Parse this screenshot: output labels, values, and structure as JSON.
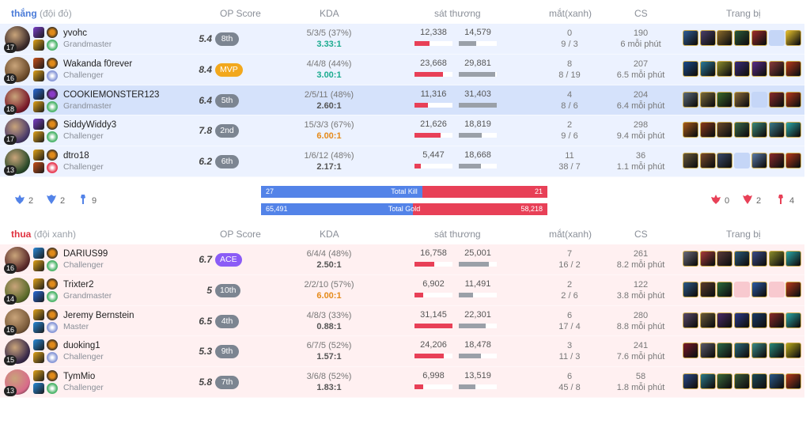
{
  "headers": {
    "op": "OP Score",
    "kda": "KDA",
    "dmg": "sát thương",
    "ward": "mắt(xanh)",
    "cs": "CS",
    "items": "Trang bị"
  },
  "teams": [
    {
      "result": "thắng",
      "side": "(đội đỏ)",
      "players": [
        {
          "name": "yvohc",
          "tier": "Grandmaster",
          "level": "17",
          "score": "5.4",
          "badge": "8th",
          "badge_type": "rank",
          "kda1": "5/3/5 (37%)",
          "kda2": "3.33:1",
          "kda_tone": "good",
          "dealt": "12,338",
          "taken": "14,579",
          "dealt_pct": 0.39,
          "taken_pct": 0.46,
          "wards": "0",
          "wards2": "9 / 3",
          "cs": "190",
          "cs_rate": "6 mỗi phút",
          "champ_color": "#3a2a2a",
          "spells": [
            "#7a3fc8",
            "#e0a21a"
          ],
          "runes": [
            "#e08a1a",
            "#4fb56c"
          ],
          "items": [
            "#2f5f9a",
            "#4a3f6a",
            "#8a6a2a",
            "#2a5a3a",
            "#a02a2a",
            "empty",
            "#e8c22a"
          ]
        },
        {
          "name": "Wakanda f0rever",
          "tier": "Challenger",
          "level": "16",
          "score": "8.4",
          "badge": "MVP",
          "badge_type": "mvp",
          "kda1": "4/4/8 (44%)",
          "kda2": "3.00:1",
          "kda_tone": "good",
          "dealt": "23,668",
          "taken": "29,881",
          "dealt_pct": 0.75,
          "taken_pct": 0.95,
          "wards": "8",
          "wards2": "8 / 19",
          "cs": "207",
          "cs_rate": "6.5 mỗi phút",
          "champ_color": "#6a4a2a",
          "spells": [
            "#c8501a",
            "#e0a21a"
          ],
          "runes": [
            "#e08a1a",
            "#8a9ad8"
          ],
          "items": [
            "#1a4a8a",
            "#2a7a9a",
            "#8a8a2a",
            "#3a2a7a",
            "#5a2a8a",
            "#8a3a3a",
            "#b8381a"
          ]
        },
        {
          "name": "COOKIEMONSTER123",
          "tier": "Grandmaster",
          "level": "18",
          "score": "6.4",
          "badge": "5th",
          "badge_type": "rank",
          "kda1": "2/5/11 (48%)",
          "kda2": "2.60:1",
          "kda_tone": "",
          "dealt": "11,316",
          "taken": "31,403",
          "dealt_pct": 0.36,
          "taken_pct": 1.0,
          "wards": "4",
          "wards2": "8 / 6",
          "cs": "204",
          "cs_rate": "6.4 mỗi phút",
          "champ_color": "#7a1a2a",
          "spells": [
            "#2a6ad8",
            "#e0a21a"
          ],
          "runes": [
            "#8a3ac8",
            "#4fb56c"
          ],
          "items": [
            "#5a6a7a",
            "#7a6a3a",
            "#3a6a2a",
            "#8a6a3a",
            "empty",
            "#8a2a2a",
            "#b8381a"
          ]
        },
        {
          "name": "SiddyWiddy3",
          "tier": "Challenger",
          "level": "17",
          "score": "7.8",
          "badge": "2nd",
          "badge_type": "rank",
          "kda1": "15/3/3 (67%)",
          "kda2": "6.00:1",
          "kda_tone": "great",
          "dealt": "21,626",
          "taken": "18,819",
          "dealt_pct": 0.69,
          "taken_pct": 0.6,
          "wards": "2",
          "wards2": "9 / 6",
          "cs": "298",
          "cs_rate": "9.4 mỗi phút",
          "champ_color": "#4a3a6a",
          "spells": [
            "#7a3fc8",
            "#e0a21a"
          ],
          "runes": [
            "#e08a1a",
            "#4fb56c"
          ],
          "items": [
            "#a85a1a",
            "#8a3a1a",
            "#6a4a2a",
            "#3a6a4a",
            "#3a8a7a",
            "#3a7a8a",
            "#2aa8a8"
          ]
        },
        {
          "name": "dtro18",
          "tier": "Challenger",
          "level": "13",
          "score": "6.2",
          "badge": "6th",
          "badge_type": "rank",
          "kda1": "1/6/12 (48%)",
          "kda2": "2.17:1",
          "kda_tone": "",
          "dealt": "5,447",
          "taken": "18,668",
          "dealt_pct": 0.17,
          "taken_pct": 0.59,
          "wards": "11",
          "wards2": "38 / 7",
          "cs": "36",
          "cs_rate": "1.1 mỗi phút",
          "champ_color": "#2a4a2a",
          "spells": [
            "#e0a21a",
            "#c8501a"
          ],
          "runes": [
            "#e08a1a",
            "#e84057"
          ],
          "items": [
            "#6a5a3a",
            "#7a4a2a",
            "#3a4a6a",
            "empty",
            "#5a7aa8",
            "#8a2a2a",
            "#b8381a"
          ]
        }
      ]
    },
    {
      "result": "thua",
      "side": "(đội xanh)",
      "players": [
        {
          "name": "DARIUS99",
          "tier": "Challenger",
          "level": "16",
          "score": "6.7",
          "badge": "ACE",
          "badge_type": "ace",
          "kda1": "6/4/4 (48%)",
          "kda2": "2.50:1",
          "kda_tone": "",
          "dealt": "16,758",
          "taken": "25,001",
          "dealt_pct": 0.53,
          "taken_pct": 0.8,
          "wards": "7",
          "wards2": "16 / 2",
          "cs": "261",
          "cs_rate": "8.2 mỗi phút",
          "champ_color": "#5a2a2a",
          "spells": [
            "#2a8ad8",
            "#e0a21a"
          ],
          "runes": [
            "#e08a1a",
            "#4fb56c"
          ],
          "items": [
            "#6a6a7a",
            "#a83a3a",
            "#5a3a3a",
            "#2a5a7a",
            "#3a4a8a",
            "#8a8a2a",
            "#2aa8a8"
          ]
        },
        {
          "name": "Trixter2",
          "tier": "Grandmaster",
          "level": "14",
          "score": "5",
          "badge": "10th",
          "badge_type": "rank",
          "kda1": "2/2/10 (57%)",
          "kda2": "6.00:1",
          "kda_tone": "great",
          "dealt": "6,902",
          "taken": "11,491",
          "dealt_pct": 0.22,
          "taken_pct": 0.37,
          "wards": "2",
          "wards2": "2 / 6",
          "cs": "122",
          "cs_rate": "3.8 mỗi phút",
          "champ_color": "#5a6a2a",
          "spells": [
            "#e0a21a",
            "#2a6ad8"
          ],
          "runes": [
            "#e08a1a",
            "#4fb56c"
          ],
          "items": [
            "#2a5a8a",
            "#5a3a2a",
            "#2a6a3a",
            "empty",
            "#2a5aa8",
            "empty",
            "#b8381a"
          ]
        },
        {
          "name": "Jeremy Bernstein",
          "tier": "Master",
          "level": "16",
          "score": "6.5",
          "badge": "4th",
          "badge_type": "rank",
          "kda1": "4/8/3 (33%)",
          "kda2": "0.88:1",
          "kda_tone": "",
          "dealt": "31,145",
          "taken": "22,301",
          "dealt_pct": 0.99,
          "taken_pct": 0.71,
          "wards": "6",
          "wards2": "17 / 4",
          "cs": "280",
          "cs_rate": "8.8 mỗi phút",
          "champ_color": "#7a5a3a",
          "spells": [
            "#e0a21a",
            "#2a8ad8"
          ],
          "runes": [
            "#e08a1a",
            "#8a9ad8"
          ],
          "items": [
            "#5a4a6a",
            "#6a5a3a",
            "#4a2a6a",
            "#2a3a8a",
            "#1a3a6a",
            "#8a2a2a",
            "#2aa8a8"
          ]
        },
        {
          "name": "duoking1",
          "tier": "Challenger",
          "level": "15",
          "score": "5.3",
          "badge": "9th",
          "badge_type": "rank",
          "kda1": "6/7/5 (52%)",
          "kda2": "1.57:1",
          "kda_tone": "",
          "dealt": "24,206",
          "taken": "18,478",
          "dealt_pct": 0.77,
          "taken_pct": 0.59,
          "wards": "3",
          "wards2": "11 / 3",
          "cs": "241",
          "cs_rate": "7.6 mỗi phút",
          "champ_color": "#3a2a4a",
          "spells": [
            "#2a8ad8",
            "#e0a21a"
          ],
          "runes": [
            "#e08a1a",
            "#8a9ad8"
          ],
          "items": [
            "#7a1a2a",
            "#5a5a6a",
            "#2a6a4a",
            "#2a6a7a",
            "#3a8a8a",
            "#2a8a7a",
            "#b8a81a"
          ]
        },
        {
          "name": "TymMio",
          "tier": "Challenger",
          "level": "13",
          "score": "5.8",
          "badge": "7th",
          "badge_type": "rank",
          "kda1": "3/6/8 (52%)",
          "kda2": "1.83:1",
          "kda_tone": "",
          "dealt": "6,998",
          "taken": "13,519",
          "dealt_pct": 0.22,
          "taken_pct": 0.43,
          "wards": "6",
          "wards2": "45 / 8",
          "cs": "58",
          "cs_rate": "1.8 mỗi phút",
          "champ_color": "#d86a8a",
          "spells": [
            "#e0a21a",
            "#2a8ad8"
          ],
          "runes": [
            "#e08a1a",
            "#4fb56c"
          ],
          "items": [
            "#2a4a8a",
            "#2a7a8a",
            "#3a6a3a",
            "#3a5a3a",
            "#1a4a5a",
            "#2a5a8a",
            "#b8381a"
          ]
        }
      ]
    }
  ],
  "summary": {
    "kill": {
      "label": "Total Kill",
      "left": "27",
      "right": "21",
      "left_num": 27,
      "right_num": 21
    },
    "gold": {
      "label": "Total Gold",
      "left": "65,491",
      "right": "58,218",
      "left_num": 65491,
      "right_num": 58218
    },
    "win_objectives": [
      {
        "icon": "baron-icon",
        "value": "2"
      },
      {
        "icon": "dragon-icon",
        "value": "2"
      },
      {
        "icon": "tower-icon",
        "value": "9"
      }
    ],
    "lose_objectives": [
      {
        "icon": "baron-icon",
        "value": "0"
      },
      {
        "icon": "dragon-icon",
        "value": "2"
      },
      {
        "icon": "tower-icon",
        "value": "4"
      }
    ]
  },
  "colors": {
    "win_bg": "#ecf2ff",
    "lose_bg": "#fff0f1",
    "blue": "#5383e8",
    "red": "#e84057",
    "accent_mvp": "#f2a81d",
    "accent_ace": "#8b5cf6"
  }
}
